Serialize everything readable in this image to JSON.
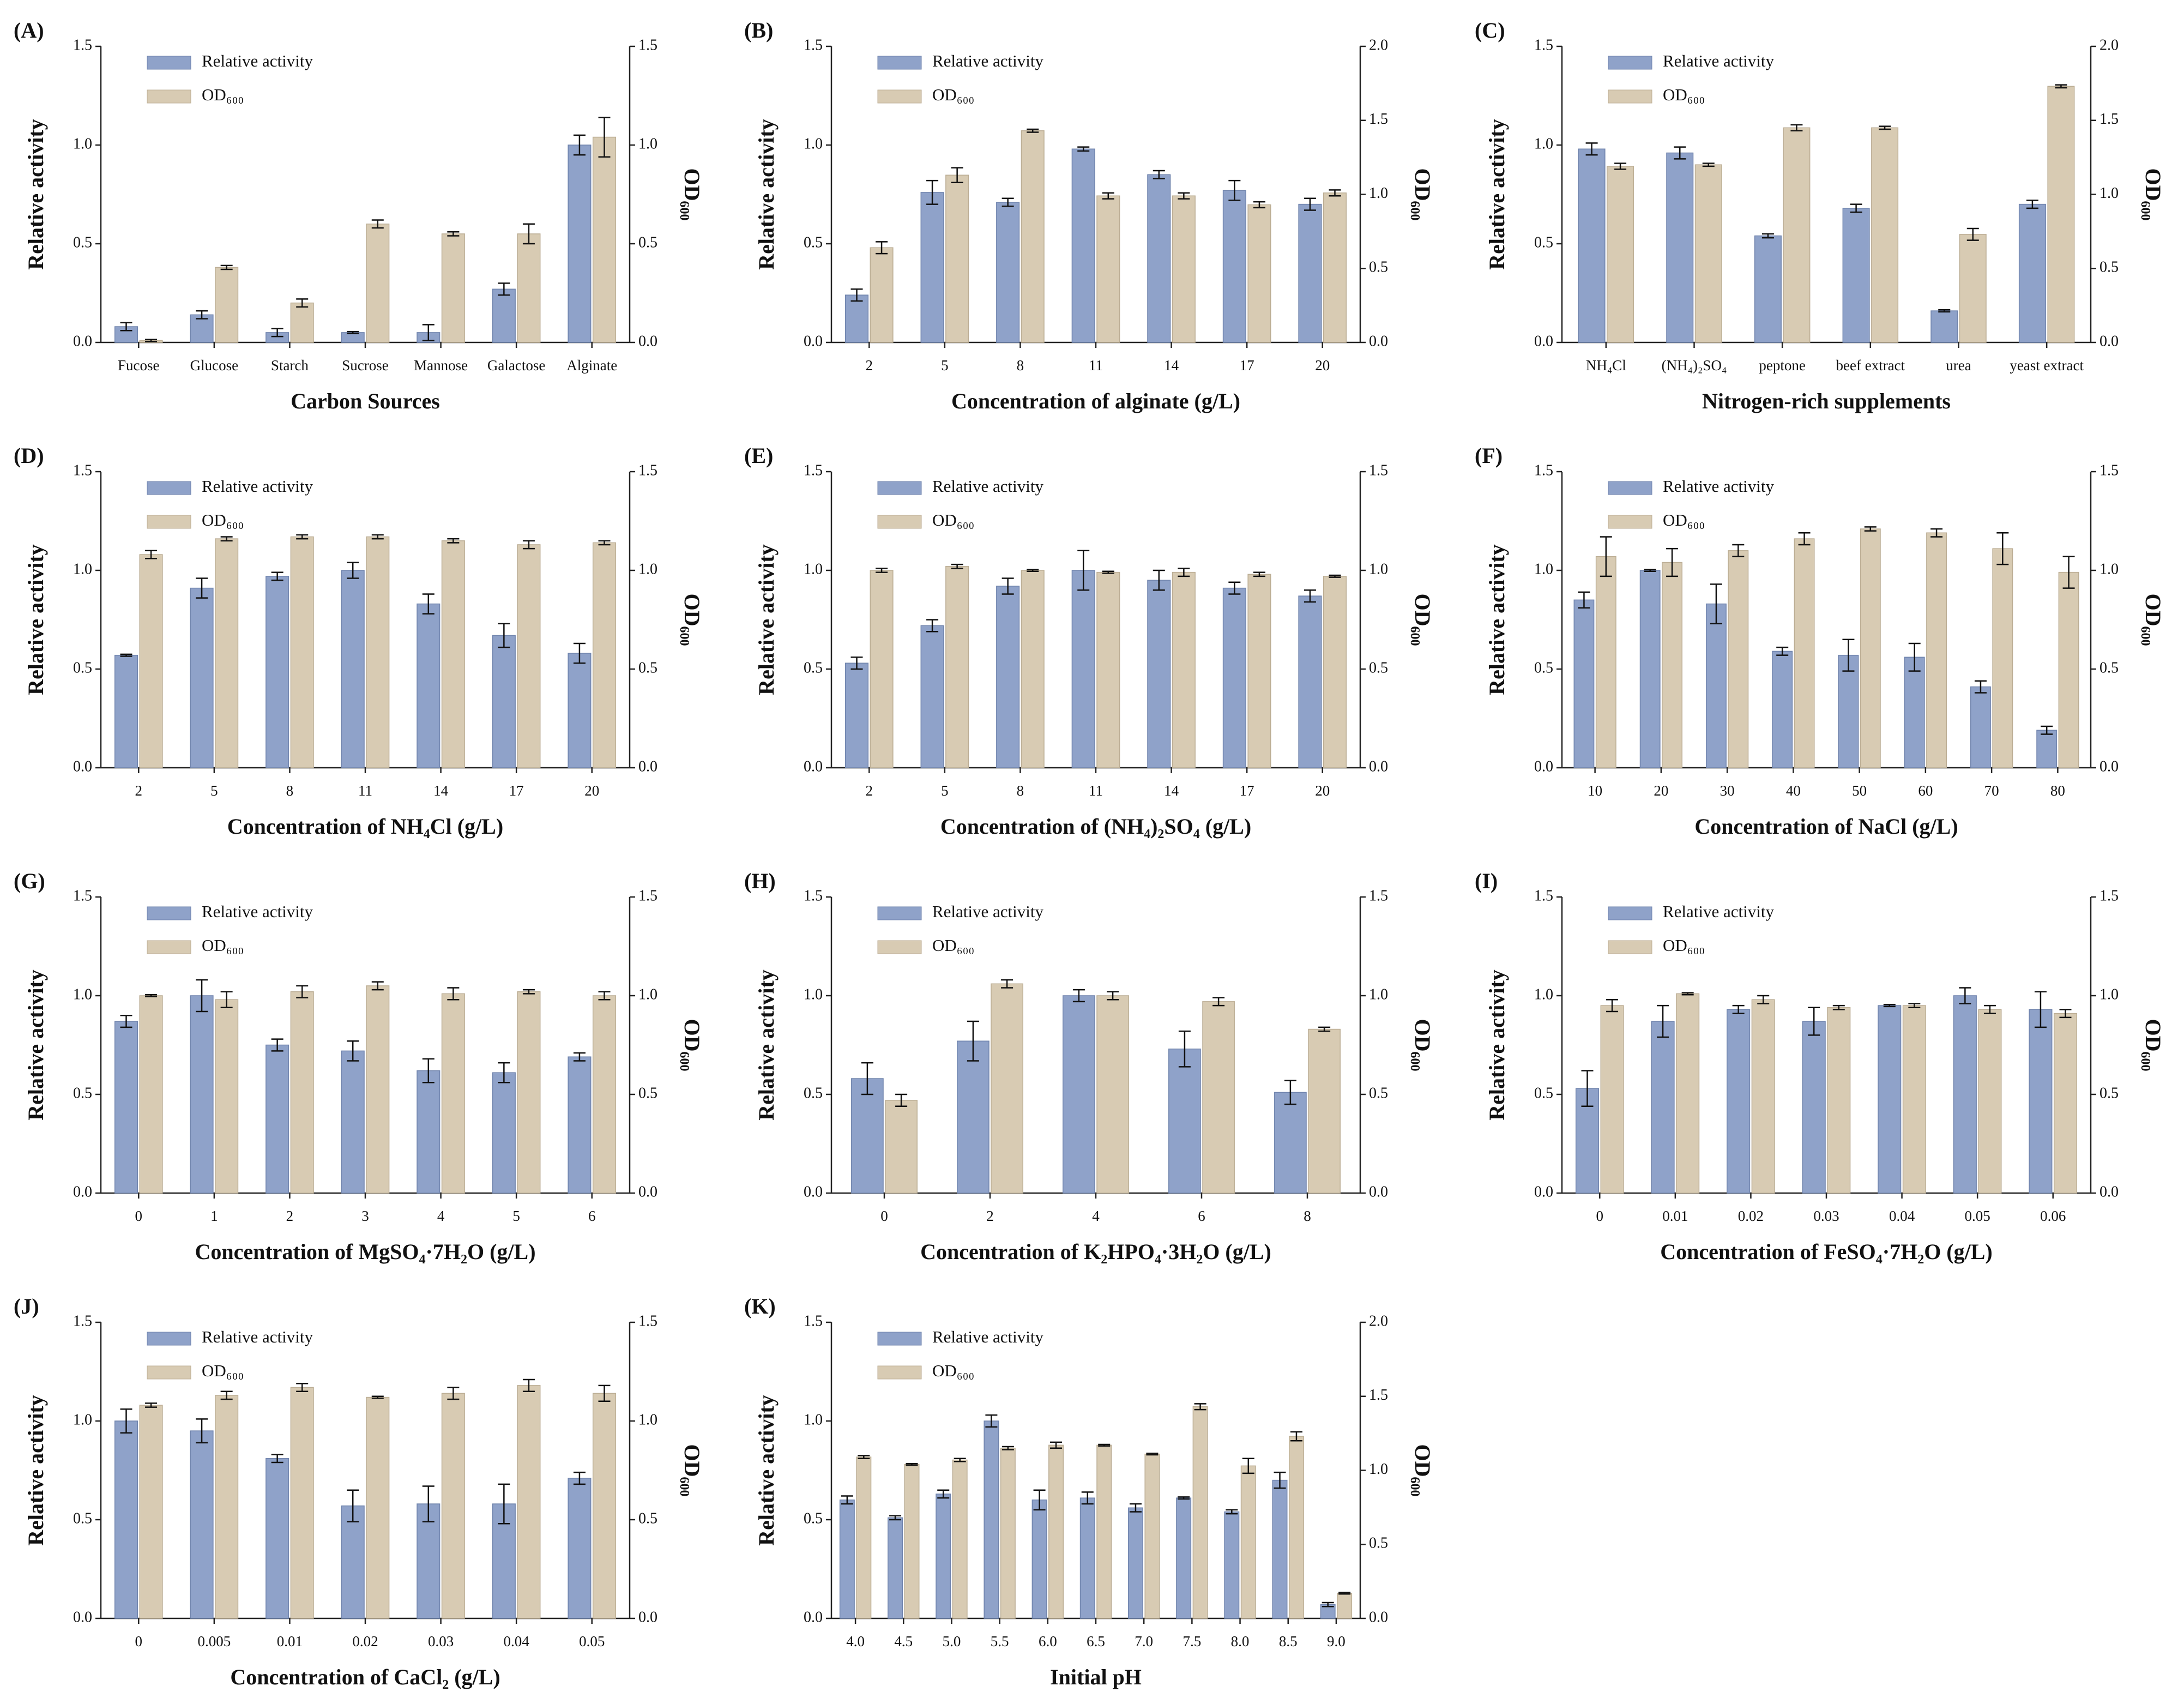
{
  "chart_data": [
    {
      "type": "bar",
      "panel": "(A)",
      "xlabel": "Carbon Sources",
      "ylabel": "Relative activity",
      "y2label": "OD₆₀₀",
      "categories": [
        "Fucose",
        "Glucose",
        "Starch",
        "Sucrose",
        "Mannose",
        "Galactose",
        "Alginate"
      ],
      "series": [
        {
          "name": "Relative activity",
          "color": "#8fa2c9",
          "values": [
            0.08,
            0.14,
            0.05,
            0.05,
            0.05,
            0.27,
            1.0
          ],
          "errors": [
            0.02,
            0.02,
            0.02,
            0.005,
            0.04,
            0.03,
            0.05
          ]
        },
        {
          "name": "OD₆₀₀",
          "color": "#d8cbb3",
          "axis": "y2",
          "values": [
            0.01,
            0.38,
            0.2,
            0.6,
            0.55,
            0.55,
            1.04
          ],
          "errors": [
            0.005,
            0.01,
            0.02,
            0.02,
            0.01,
            0.05,
            0.1
          ]
        }
      ],
      "ylim": [
        0,
        1.5
      ],
      "yticks": [
        {
          "value": 0,
          "label": "0.0"
        },
        0.5,
        {
          "value": 1,
          "label": "1.0"
        },
        1.5
      ],
      "y2lim": [
        0,
        1.5
      ],
      "y2ticks": [
        {
          "value": 0,
          "label": "0.0"
        },
        0.5,
        {
          "value": 1,
          "label": "1.0"
        },
        1.5
      ]
    },
    {
      "type": "bar",
      "panel": "(B)",
      "xlabel": "Concentration of alginate (g/L)",
      "ylabel": "Relative activity",
      "y2label": "OD₆₀₀",
      "categories": [
        "2",
        "5",
        "8",
        "11",
        "14",
        "17",
        "20"
      ],
      "series": [
        {
          "name": "Relative activity",
          "color": "#8fa2c9",
          "values": [
            0.24,
            0.76,
            0.71,
            0.98,
            0.85,
            0.77,
            0.7
          ],
          "errors": [
            0.03,
            0.06,
            0.02,
            0.01,
            0.02,
            0.05,
            0.03
          ]
        },
        {
          "name": "OD₆₀₀",
          "color": "#d8cbb3",
          "axis": "y2",
          "values": [
            0.64,
            1.13,
            1.43,
            0.99,
            0.99,
            0.93,
            1.01
          ],
          "errors": [
            0.04,
            0.05,
            0.01,
            0.02,
            0.02,
            0.02,
            0.02
          ]
        }
      ],
      "ylim": [
        0,
        1.5
      ],
      "yticks": [
        {
          "value": 0,
          "label": "0.0"
        },
        0.5,
        {
          "value": 1,
          "label": "1.0"
        },
        1.5
      ],
      "y2lim": [
        0,
        2
      ],
      "y2ticks": [
        {
          "value": 0,
          "label": "0.0"
        },
        0.5,
        {
          "value": 1,
          "label": "1.0"
        },
        1.5,
        {
          "value": 2,
          "label": "2.0"
        }
      ]
    },
    {
      "type": "bar",
      "panel": "(C)",
      "xlabel": "Nitrogen-rich supplements",
      "ylabel": "Relative activity",
      "y2label": "OD₆₀₀",
      "categories": [
        "NH₄Cl",
        "(NH₄)₂SO₄",
        "peptone",
        "beef extract",
        "urea",
        "yeast extract"
      ],
      "series": [
        {
          "name": "Relative activity",
          "color": "#8fa2c9",
          "values": [
            0.98,
            0.96,
            0.54,
            0.68,
            0.16,
            0.7
          ],
          "errors": [
            0.03,
            0.03,
            0.01,
            0.02,
            0.005,
            0.02
          ]
        },
        {
          "name": "OD₆₀₀",
          "color": "#d8cbb3",
          "axis": "y2",
          "values": [
            1.19,
            1.2,
            1.45,
            1.45,
            0.73,
            1.73
          ],
          "errors": [
            0.02,
            0.01,
            0.02,
            0.01,
            0.04,
            0.01
          ]
        }
      ],
      "ylim": [
        0,
        1.5
      ],
      "yticks": [
        {
          "value": 0,
          "label": "0.0"
        },
        0.5,
        {
          "value": 1,
          "label": "1.0"
        },
        1.5
      ],
      "y2lim": [
        0,
        2
      ],
      "y2ticks": [
        {
          "value": 0,
          "label": "0.0"
        },
        0.5,
        {
          "value": 1,
          "label": "1.0"
        },
        1.5,
        {
          "value": 2,
          "label": "2.0"
        }
      ]
    },
    {
      "type": "bar",
      "panel": "(D)",
      "xlabel": "Concentration of NH₄Cl (g/L)",
      "ylabel": "Relative activity",
      "y2label": "OD₆₀₀",
      "categories": [
        "2",
        "5",
        "8",
        "11",
        "14",
        "17",
        "20"
      ],
      "series": [
        {
          "name": "Relative activity",
          "color": "#8fa2c9",
          "values": [
            0.57,
            0.91,
            0.97,
            1.0,
            0.83,
            0.67,
            0.58
          ],
          "errors": [
            0.005,
            0.05,
            0.02,
            0.04,
            0.05,
            0.06,
            0.05
          ]
        },
        {
          "name": "OD₆₀₀",
          "color": "#d8cbb3",
          "axis": "y2",
          "values": [
            1.08,
            1.16,
            1.17,
            1.17,
            1.15,
            1.13,
            1.14
          ],
          "errors": [
            0.02,
            0.01,
            0.01,
            0.01,
            0.01,
            0.02,
            0.01
          ]
        }
      ],
      "ylim": [
        0,
        1.5
      ],
      "yticks": [
        {
          "value": 0,
          "label": "0.0"
        },
        0.5,
        {
          "value": 1,
          "label": "1.0"
        },
        1.5
      ],
      "y2lim": [
        0,
        1.5
      ],
      "y2ticks": [
        {
          "value": 0,
          "label": "0.0"
        },
        0.5,
        {
          "value": 1,
          "label": "1.0"
        },
        1.5
      ]
    },
    {
      "type": "bar",
      "panel": "(E)",
      "xlabel": "Concentration of (NH₄)₂SO₄ (g/L)",
      "ylabel": "Relative activity",
      "y2label": "OD₆₀₀",
      "categories": [
        "2",
        "5",
        "8",
        "11",
        "14",
        "17",
        "20"
      ],
      "series": [
        {
          "name": "Relative activity",
          "color": "#8fa2c9",
          "values": [
            0.53,
            0.72,
            0.92,
            1.0,
            0.95,
            0.91,
            0.87
          ],
          "errors": [
            0.03,
            0.03,
            0.04,
            0.1,
            0.05,
            0.03,
            0.03
          ]
        },
        {
          "name": "OD₆₀₀",
          "color": "#d8cbb3",
          "axis": "y2",
          "values": [
            1.0,
            1.02,
            1.0,
            0.99,
            0.99,
            0.98,
            0.97
          ],
          "errors": [
            0.01,
            0.01,
            0.005,
            0.005,
            0.02,
            0.01,
            0.005
          ]
        }
      ],
      "ylim": [
        0,
        1.5
      ],
      "yticks": [
        {
          "value": 0,
          "label": "0.0"
        },
        0.5,
        {
          "value": 1,
          "label": "1.0"
        },
        1.5
      ],
      "y2lim": [
        0,
        1.5
      ],
      "y2ticks": [
        {
          "value": 0,
          "label": "0.0"
        },
        0.5,
        {
          "value": 1,
          "label": "1.0"
        },
        1.5
      ]
    },
    {
      "type": "bar",
      "panel": "(F)",
      "xlabel": "Concentration of NaCl (g/L)",
      "ylabel": "Relative activity",
      "y2label": "OD₆₀₀",
      "categories": [
        "10",
        "20",
        "30",
        "40",
        "50",
        "60",
        "70",
        "80"
      ],
      "series": [
        {
          "name": "Relative activity",
          "color": "#8fa2c9",
          "values": [
            0.85,
            1.0,
            0.83,
            0.59,
            0.57,
            0.56,
            0.41,
            0.19
          ],
          "errors": [
            0.04,
            0.005,
            0.1,
            0.02,
            0.08,
            0.07,
            0.03,
            0.02
          ]
        },
        {
          "name": "OD₆₀₀",
          "color": "#d8cbb3",
          "axis": "y2",
          "values": [
            1.07,
            1.04,
            1.1,
            1.16,
            1.21,
            1.19,
            1.11,
            0.99
          ],
          "errors": [
            0.1,
            0.07,
            0.03,
            0.03,
            0.01,
            0.02,
            0.08,
            0.08
          ]
        }
      ],
      "ylim": [
        0,
        1.5
      ],
      "yticks": [
        {
          "value": 0,
          "label": "0.0"
        },
        0.5,
        {
          "value": 1,
          "label": "1.0"
        },
        1.5
      ],
      "y2lim": [
        0,
        1.5
      ],
      "y2ticks": [
        {
          "value": 0,
          "label": "0.0"
        },
        0.5,
        {
          "value": 1,
          "label": "1.0"
        },
        1.5
      ]
    },
    {
      "type": "bar",
      "panel": "(G)",
      "xlabel": "Concentration of MgSO₄·7H₂O (g/L)",
      "ylabel": "Relative activity",
      "y2label": "OD₆₀₀",
      "categories": [
        "0",
        "1",
        "2",
        "3",
        "4",
        "5",
        "6"
      ],
      "series": [
        {
          "name": "Relative activity",
          "color": "#8fa2c9",
          "values": [
            0.87,
            1.0,
            0.75,
            0.72,
            0.62,
            0.61,
            0.69
          ],
          "errors": [
            0.03,
            0.08,
            0.03,
            0.05,
            0.06,
            0.05,
            0.02
          ]
        },
        {
          "name": "OD₆₀₀",
          "color": "#d8cbb3",
          "axis": "y2",
          "values": [
            1.0,
            0.98,
            1.02,
            1.05,
            1.01,
            1.02,
            1.0
          ],
          "errors": [
            0.005,
            0.04,
            0.03,
            0.02,
            0.03,
            0.01,
            0.02
          ]
        }
      ],
      "ylim": [
        0,
        1.5
      ],
      "yticks": [
        {
          "value": 0,
          "label": "0.0"
        },
        0.5,
        {
          "value": 1,
          "label": "1.0"
        },
        1.5
      ],
      "y2lim": [
        0,
        1.5
      ],
      "y2ticks": [
        {
          "value": 0,
          "label": "0.0"
        },
        0.5,
        {
          "value": 1,
          "label": "1.0"
        },
        1.5
      ]
    },
    {
      "type": "bar",
      "panel": "(H)",
      "xlabel": "Concentration of K₂HPO₄·3H₂O (g/L)",
      "ylabel": "Relative activity",
      "y2label": "OD₆₀₀",
      "categories": [
        "0",
        "2",
        "4",
        "6",
        "8"
      ],
      "series": [
        {
          "name": "Relative activity",
          "color": "#8fa2c9",
          "values": [
            0.58,
            0.77,
            1.0,
            0.73,
            0.51
          ],
          "errors": [
            0.08,
            0.1,
            0.03,
            0.09,
            0.06
          ]
        },
        {
          "name": "OD₆₀₀",
          "color": "#d8cbb3",
          "axis": "y2",
          "values": [
            0.47,
            1.06,
            1.0,
            0.97,
            0.83
          ],
          "errors": [
            0.03,
            0.02,
            0.02,
            0.02,
            0.01
          ]
        }
      ],
      "ylim": [
        0,
        1.5
      ],
      "yticks": [
        {
          "value": 0,
          "label": "0.0"
        },
        0.5,
        {
          "value": 1,
          "label": "1.0"
        },
        1.5
      ],
      "y2lim": [
        0,
        1.5
      ],
      "y2ticks": [
        {
          "value": 0,
          "label": "0.0"
        },
        0.5,
        {
          "value": 1,
          "label": "1.0"
        },
        1.5
      ]
    },
    {
      "type": "bar",
      "panel": "(I)",
      "xlabel": "Concentration of FeSO₄·7H₂O (g/L)",
      "ylabel": "Relative activity",
      "y2label": "OD₆₀₀",
      "categories": [
        "0",
        "0.01",
        "0.02",
        "0.03",
        "0.04",
        "0.05",
        "0.06"
      ],
      "series": [
        {
          "name": "Relative activity",
          "color": "#8fa2c9",
          "values": [
            0.53,
            0.87,
            0.93,
            0.87,
            0.95,
            1.0,
            0.93
          ],
          "errors": [
            0.09,
            0.08,
            0.02,
            0.07,
            0.005,
            0.04,
            0.09
          ]
        },
        {
          "name": "OD₆₀₀",
          "color": "#d8cbb3",
          "axis": "y2",
          "values": [
            0.95,
            1.01,
            0.98,
            0.94,
            0.95,
            0.93,
            0.91
          ],
          "errors": [
            0.03,
            0.005,
            0.02,
            0.01,
            0.01,
            0.02,
            0.02
          ]
        }
      ],
      "ylim": [
        0,
        1.5
      ],
      "yticks": [
        {
          "value": 0,
          "label": "0.0"
        },
        0.5,
        {
          "value": 1,
          "label": "1.0"
        },
        1.5
      ],
      "y2lim": [
        0,
        1.5
      ],
      "y2ticks": [
        {
          "value": 0,
          "label": "0.0"
        },
        0.5,
        {
          "value": 1,
          "label": "1.0"
        },
        1.5
      ]
    },
    {
      "type": "bar",
      "panel": "(J)",
      "xlabel": "Concentration of CaCl₂ (g/L)",
      "ylabel": "Relative activity",
      "y2label": "OD₆₀₀",
      "categories": [
        "0",
        "0.005",
        "0.01",
        "0.02",
        "0.03",
        "0.04",
        "0.05"
      ],
      "series": [
        {
          "name": "Relative activity",
          "color": "#8fa2c9",
          "values": [
            1.0,
            0.95,
            0.81,
            0.57,
            0.58,
            0.58,
            0.71
          ],
          "errors": [
            0.06,
            0.06,
            0.02,
            0.08,
            0.09,
            0.1,
            0.03
          ]
        },
        {
          "name": "OD₆₀₀",
          "color": "#d8cbb3",
          "axis": "y2",
          "values": [
            1.08,
            1.13,
            1.17,
            1.12,
            1.14,
            1.18,
            1.14
          ],
          "errors": [
            0.01,
            0.02,
            0.02,
            0.005,
            0.03,
            0.03,
            0.04
          ]
        }
      ],
      "ylim": [
        0,
        1.5
      ],
      "yticks": [
        {
          "value": 0,
          "label": "0.0"
        },
        0.5,
        {
          "value": 1,
          "label": "1.0"
        },
        1.5
      ],
      "y2lim": [
        0,
        1.5
      ],
      "y2ticks": [
        {
          "value": 0,
          "label": "0.0"
        },
        0.5,
        {
          "value": 1,
          "label": "1.0"
        },
        1.5
      ]
    },
    {
      "type": "bar",
      "panel": "(K)",
      "xlabel": "Initial pH",
      "ylabel": "Relative activity",
      "y2label": "OD₆₀₀",
      "categories": [
        "4.0",
        "4.5",
        "5.0",
        "5.5",
        "6.0",
        "6.5",
        "7.0",
        "7.5",
        "8.0",
        "8.5",
        "9.0"
      ],
      "series": [
        {
          "name": "Relative activity",
          "color": "#8fa2c9",
          "values": [
            0.6,
            0.51,
            0.63,
            1.0,
            0.6,
            0.61,
            0.56,
            0.61,
            0.54,
            0.7,
            0.07
          ],
          "errors": [
            0.02,
            0.01,
            0.02,
            0.03,
            0.05,
            0.03,
            0.02,
            0.005,
            0.01,
            0.04,
            0.01
          ]
        },
        {
          "name": "OD₆₀₀",
          "color": "#d8cbb3",
          "axis": "y2",
          "values": [
            1.09,
            1.04,
            1.07,
            1.15,
            1.17,
            1.17,
            1.11,
            1.43,
            1.03,
            1.23,
            0.17
          ],
          "errors": [
            0.01,
            0.005,
            0.01,
            0.01,
            0.02,
            0.005,
            0.005,
            0.02,
            0.05,
            0.03,
            0.005
          ]
        }
      ],
      "ylim": [
        0,
        1.5
      ],
      "yticks": [
        {
          "value": 0,
          "label": "0.0"
        },
        0.5,
        {
          "value": 1,
          "label": "1.0"
        },
        1.5
      ],
      "y2lim": [
        0,
        2
      ],
      "y2ticks": [
        {
          "value": 0,
          "label": "0.0"
        },
        0.5,
        {
          "value": 1,
          "label": "1.0"
        },
        1.5,
        {
          "value": 2,
          "label": "2.0"
        }
      ]
    }
  ]
}
